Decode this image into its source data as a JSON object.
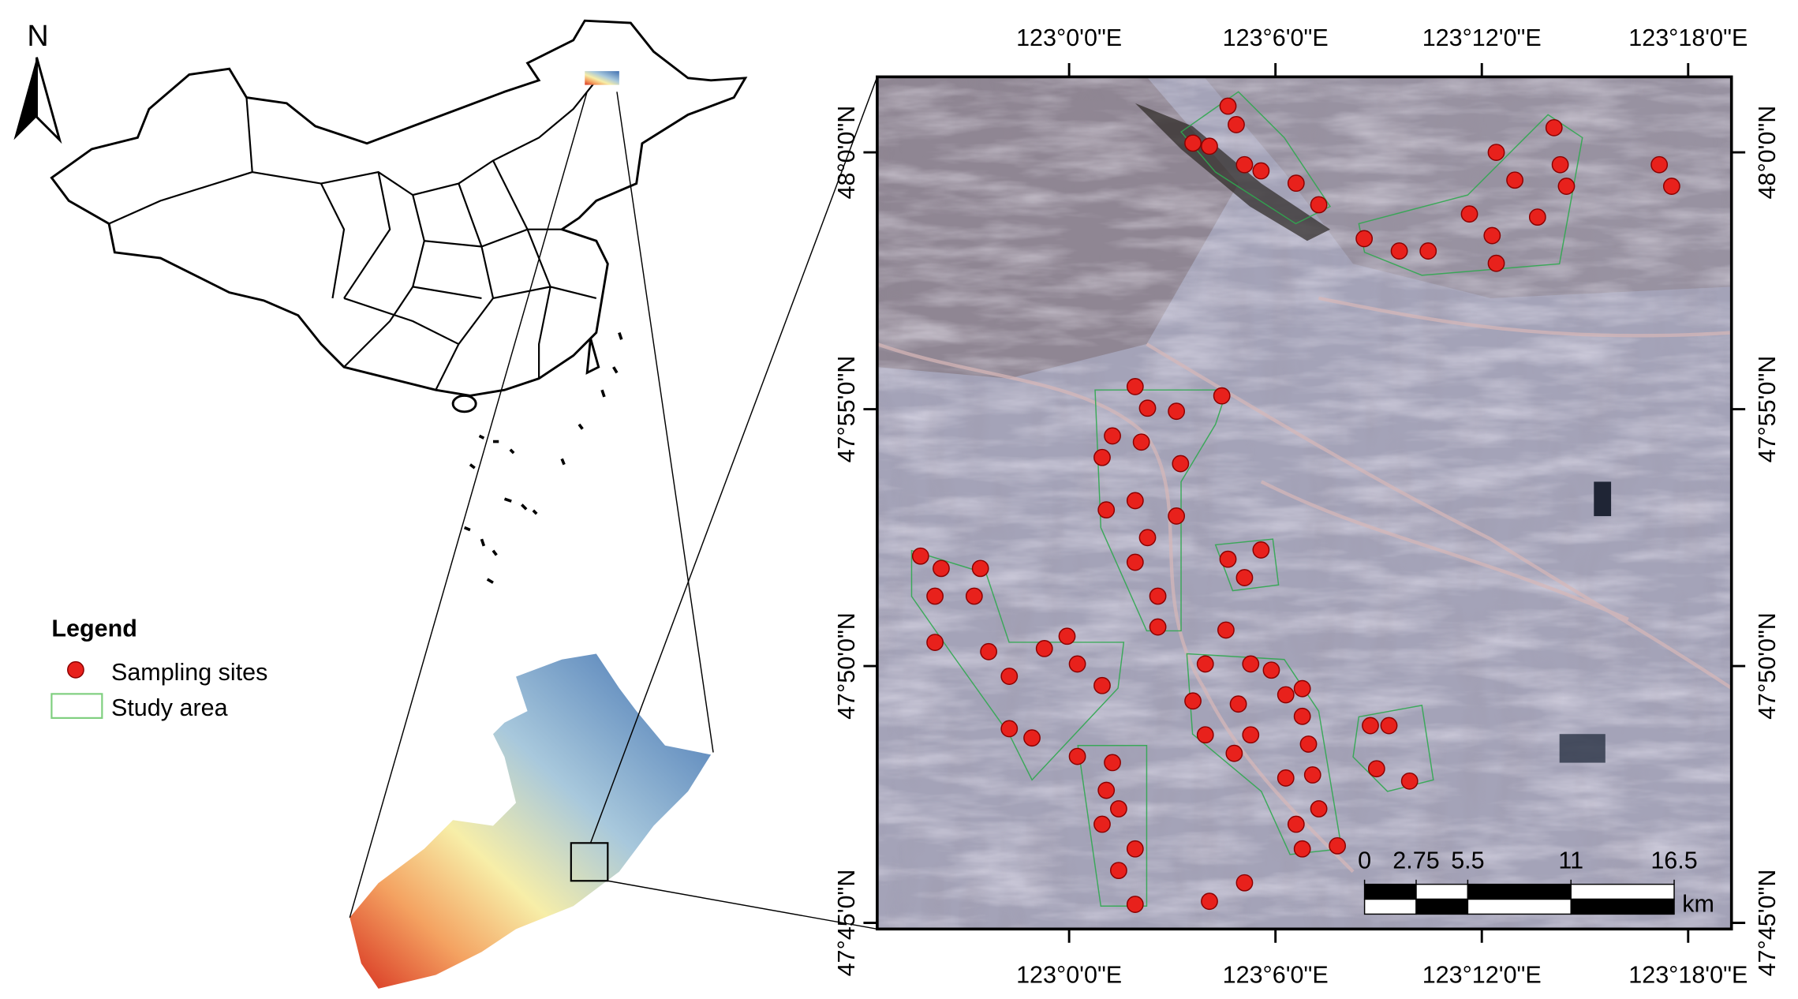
{
  "north_arrow": "N",
  "legend": {
    "title": "Legend",
    "items": [
      "Sampling sites",
      "Study area"
    ]
  },
  "map": {
    "xlim": [
      122.907,
      123.321
    ],
    "ylim": [
      47.748,
      48.0245
    ],
    "xticks": [
      {
        "value": 123,
        "label": "123°0'0\"E"
      },
      {
        "value": 123.1,
        "label": "123°6'0\"E"
      },
      {
        "value": 123.2,
        "label": "123°12'0\"E"
      },
      {
        "value": 123.3,
        "label": "123°18'0\"E"
      }
    ],
    "yticks": [
      {
        "value": 48,
        "label": "48°0'0\"N"
      },
      {
        "value": 47.91667,
        "label": "47°55'0\"N"
      },
      {
        "value": 47.83333,
        "label": "47°50'0\"N"
      },
      {
        "value": 47.75,
        "label": "47°45'0\"N"
      }
    ],
    "sampling_sites": {
      "color": "#e8211c",
      "lon": [
        123.077,
        123.068,
        123.06,
        123.081,
        123.085,
        123.093,
        123.11,
        123.121,
        123.235,
        123.238,
        123.207,
        123.216,
        123.241,
        123.194,
        123.227,
        123.205,
        123.143,
        123.16,
        123.174,
        123.207,
        123.286,
        123.292,
        123.032,
        123.038,
        123.052,
        123.074,
        123.021,
        123.035,
        123.016,
        123.054,
        123.018,
        123.032,
        123.052,
        123.038,
        123.032,
        123.043,
        123.043,
        123.077,
        123.093,
        123.085,
        122.928,
        122.938,
        122.957,
        122.935,
        122.954,
        122.935,
        122.961,
        122.988,
        122.999,
        122.971,
        123.004,
        123.016,
        122.971,
        122.982,
        123.004,
        123.021,
        123.018,
        123.024,
        123.016,
        123.032,
        123.024,
        123.032,
        123.076,
        123.066,
        123.088,
        123.098,
        123.06,
        123.082,
        123.105,
        123.113,
        123.066,
        123.088,
        123.08,
        123.113,
        123.116,
        123.118,
        123.105,
        123.121,
        123.11,
        123.113,
        123.13,
        123.146,
        123.155,
        123.149,
        123.165,
        123.085,
        123.068
      ],
      "lat": [
        48.015,
        48.002,
        48.003,
        48.009,
        47.996,
        47.994,
        47.99,
        47.983,
        48.008,
        47.996,
        48.0,
        47.991,
        47.989,
        47.98,
        47.979,
        47.973,
        47.972,
        47.968,
        47.968,
        47.964,
        47.996,
        47.989,
        47.924,
        47.917,
        47.916,
        47.921,
        47.908,
        47.906,
        47.901,
        47.899,
        47.884,
        47.887,
        47.882,
        47.875,
        47.867,
        47.856,
        47.846,
        47.868,
        47.871,
        47.862,
        47.869,
        47.865,
        47.865,
        47.856,
        47.856,
        47.841,
        47.838,
        47.839,
        47.843,
        47.83,
        47.834,
        47.827,
        47.813,
        47.81,
        47.804,
        47.802,
        47.793,
        47.787,
        47.782,
        47.774,
        47.767,
        47.756,
        47.845,
        47.834,
        47.834,
        47.832,
        47.822,
        47.821,
        47.824,
        47.826,
        47.811,
        47.811,
        47.805,
        47.817,
        47.808,
        47.798,
        47.797,
        47.787,
        47.782,
        47.774,
        47.775,
        47.814,
        47.814,
        47.8,
        47.796,
        47.763,
        47.757
      ]
    },
    "scale_bar": {
      "ticks": [
        0,
        2.75,
        5.5,
        11,
        16.5
      ],
      "unit": "km"
    }
  }
}
